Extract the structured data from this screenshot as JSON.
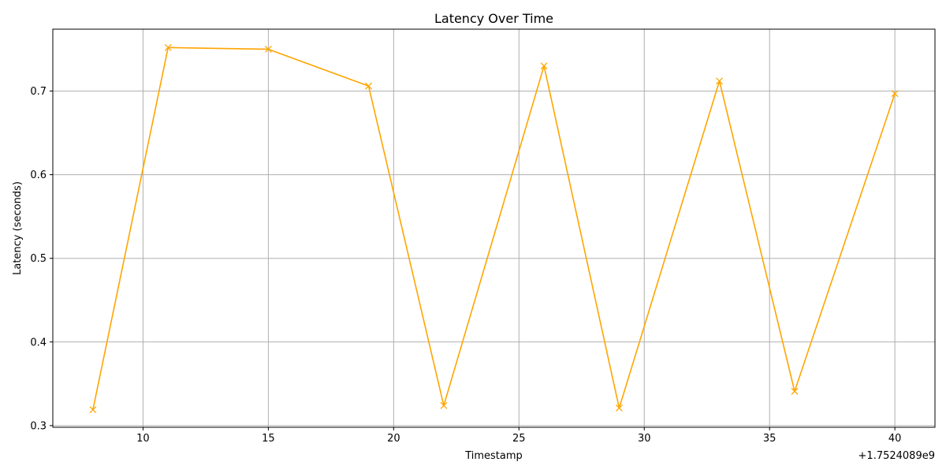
{
  "chart_data": {
    "type": "line",
    "title": "Latency Over Time",
    "xlabel": "Timestamp",
    "ylabel": "Latency (seconds)",
    "x_offset_label": "+1.7524089e9",
    "xlim": [
      6.4,
      41.6
    ],
    "ylim": [
      0.298,
      0.774
    ],
    "x_ticks": [
      10,
      15,
      20,
      25,
      30,
      35,
      40
    ],
    "y_ticks": [
      0.3,
      0.4,
      0.5,
      0.6,
      0.7
    ],
    "y_tick_labels": [
      "0.3",
      "0.4",
      "0.5",
      "0.6",
      "0.7"
    ],
    "grid": true,
    "series": [
      {
        "color": "#FFA500",
        "marker": "x",
        "x": [
          8,
          11,
          15,
          19,
          22,
          26,
          29,
          33,
          36,
          40
        ],
        "values": [
          0.319,
          0.752,
          0.75,
          0.706,
          0.324,
          0.73,
          0.321,
          0.712,
          0.341,
          0.697
        ]
      }
    ]
  }
}
